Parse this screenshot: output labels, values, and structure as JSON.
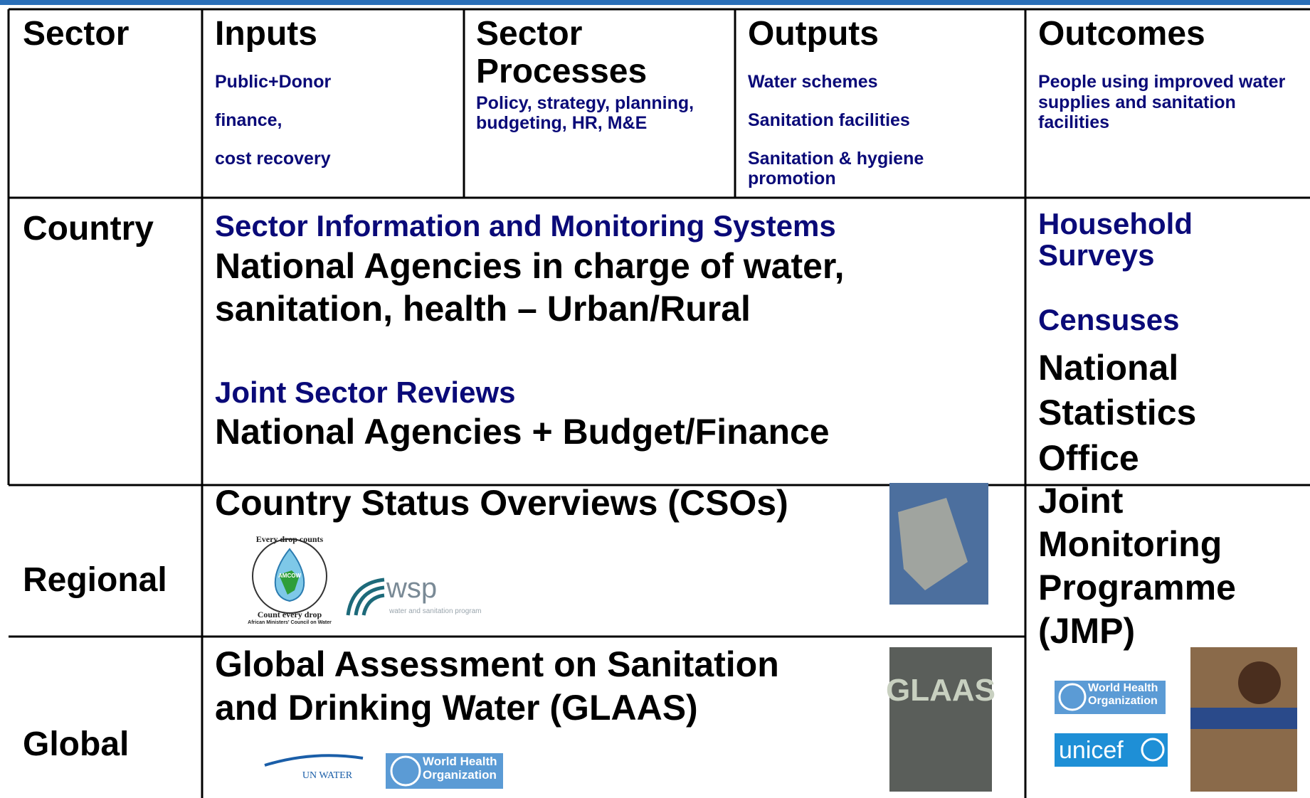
{
  "header": {
    "columns": [
      {
        "title": "Sector"
      },
      {
        "title": "Inputs",
        "items": [
          "Public+Donor",
          "finance,",
          "cost recovery"
        ]
      },
      {
        "title_lines": [
          "Sector",
          "Processes"
        ],
        "items": [
          "Policy, strategy, planning,",
          "budgeting, HR, M&E"
        ]
      },
      {
        "title": "Outputs",
        "items": [
          "Water schemes",
          "Sanitation facilities",
          "Sanitation & hygiene",
          "promotion"
        ]
      },
      {
        "title": "Outcomes",
        "items": [
          "People using improved water",
          "supplies and sanitation",
          "facilities"
        ]
      }
    ]
  },
  "rows": [
    {
      "sector": "Country",
      "main": [
        {
          "heading": "Sector Information and Monitoring Systems",
          "lines": [
            "National Agencies in charge of water,",
            "sanitation, health – Urban/Rural"
          ]
        },
        {
          "heading": "Joint Sector Reviews",
          "lines": [
            "National Agencies + Budget/Finance"
          ]
        }
      ],
      "outcomes": {
        "headings": [
          "Household",
          "Surveys",
          "Censuses"
        ],
        "lines": [
          "National",
          "Statistics",
          "Office"
        ]
      }
    },
    {
      "sector": "Regional",
      "lines": [
        "Country Status Overviews (CSOs)"
      ],
      "logos": {
        "amcow_top": "Every drop counts",
        "amcow_center": "AMCOW",
        "amcow_bottom": "Count every drop",
        "amcow_caption": "African Ministers' Council on Water",
        "wsp": "wsp",
        "wsp_caption": "water and sanitation program"
      }
    },
    {
      "sector": "Global",
      "lines": [
        "Global Assessment on Sanitation",
        "and Drinking Water (GLAAS)"
      ],
      "logos": {
        "unwater": "UN WATER",
        "who": "World Health Organization"
      }
    }
  ],
  "jmp": {
    "lines": [
      "Joint",
      "Monitoring",
      "Programme",
      "(JMP)"
    ],
    "logos": {
      "who": "World Health Organization",
      "unicef": "unicef"
    }
  }
}
